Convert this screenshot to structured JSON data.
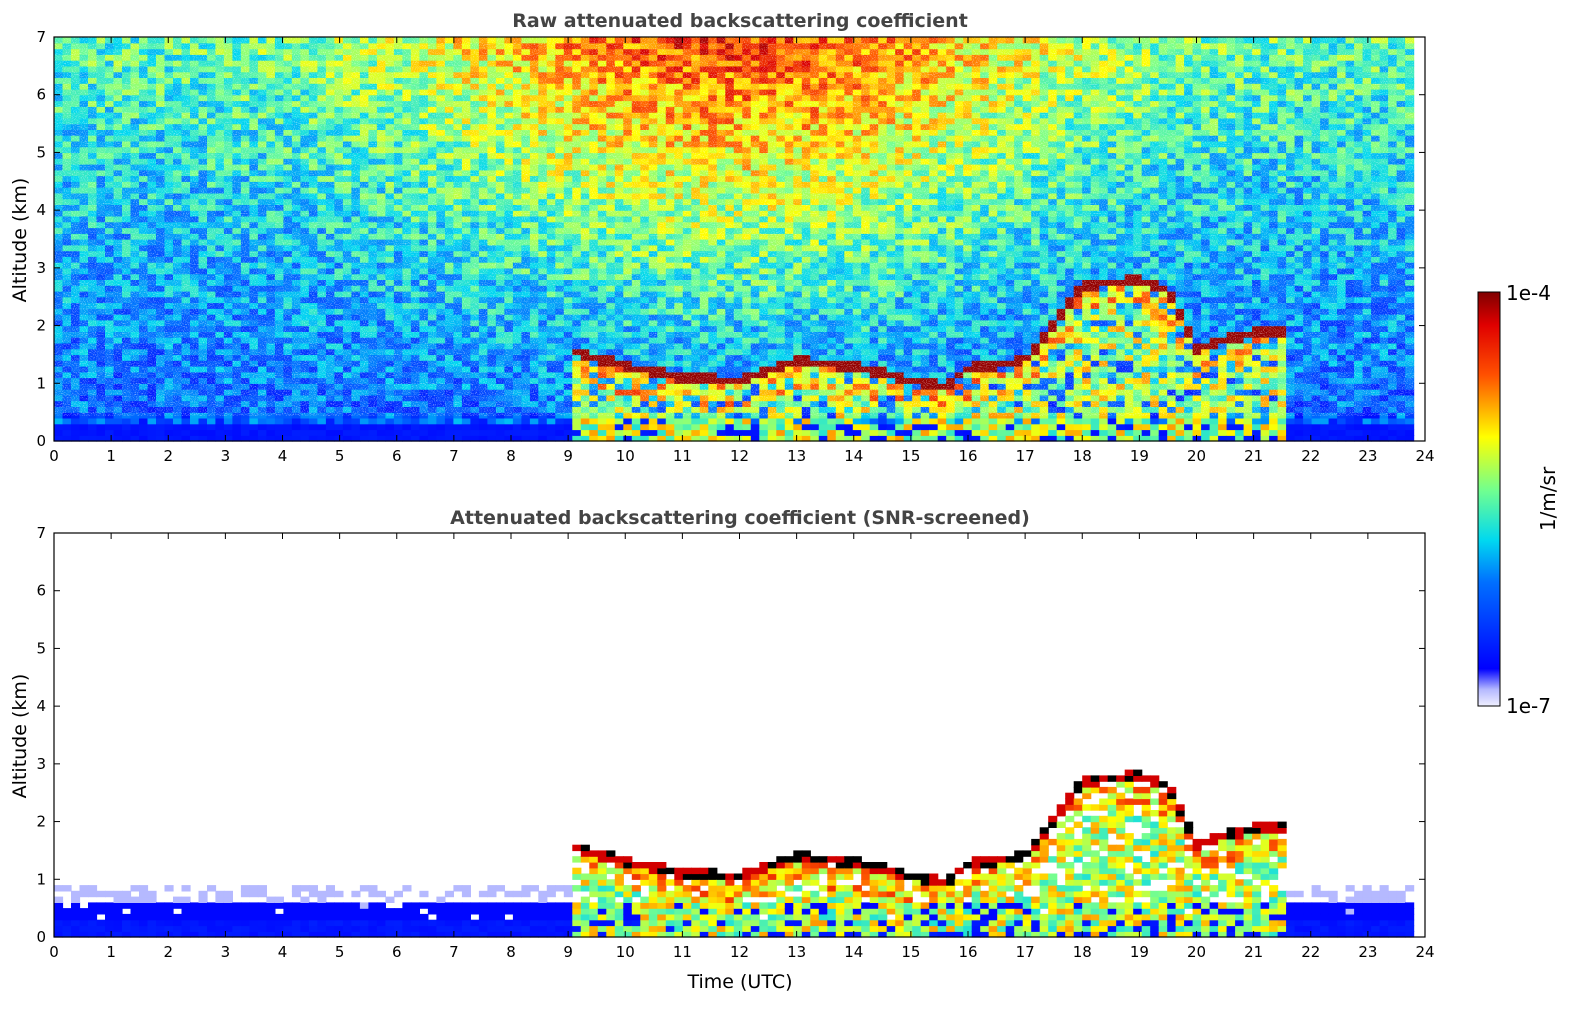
{
  "chart_data": [
    {
      "type": "heatmap",
      "title": "Raw attenuated backscattering coefficient",
      "xlabel": "",
      "ylabel": "Altitude (km)",
      "xlim": [
        0,
        24
      ],
      "ylim": [
        0,
        7
      ],
      "x_ticks": [
        "0",
        "1",
        "2",
        "3",
        "4",
        "5",
        "6",
        "7",
        "8",
        "9",
        "10",
        "11",
        "12",
        "13",
        "14",
        "15",
        "16",
        "17",
        "18",
        "19",
        "20",
        "21",
        "22",
        "23",
        "24"
      ],
      "y_ticks": [
        "0",
        "1",
        "2",
        "3",
        "4",
        "5",
        "6",
        "7"
      ],
      "data_end_time": 23.8,
      "cloud_layer": {
        "time": [
          9.0,
          10.0,
          11.0,
          12.0,
          13.0,
          14.0,
          15.0,
          15.6,
          16.0,
          17.0,
          17.5,
          18.0,
          19.0,
          19.5,
          20.0,
          21.0,
          21.5
        ],
        "altitude_km": [
          1.6,
          1.3,
          1.1,
          1.05,
          1.4,
          1.3,
          1.05,
          0.95,
          1.25,
          1.4,
          2.0,
          2.7,
          2.8,
          2.6,
          1.6,
          1.9,
          1.9
        ]
      },
      "grid": false
    },
    {
      "type": "heatmap",
      "title": "Attenuated backscattering coefficient (SNR-screened)",
      "xlabel": "Time (UTC)",
      "ylabel": "Altitude (km)",
      "xlim": [
        0,
        24
      ],
      "ylim": [
        0,
        7
      ],
      "x_ticks": [
        "0",
        "1",
        "2",
        "3",
        "4",
        "5",
        "6",
        "7",
        "8",
        "9",
        "10",
        "11",
        "12",
        "13",
        "14",
        "15",
        "16",
        "17",
        "18",
        "19",
        "20",
        "21",
        "22",
        "23",
        "24"
      ],
      "y_ticks": [
        "0",
        "1",
        "2",
        "3",
        "4",
        "5",
        "6",
        "7"
      ],
      "data_end_time": 23.8,
      "grid": false
    }
  ],
  "colorbar": {
    "label": "1/m/sr",
    "max_label": "1e-4",
    "min_label": "1e-7",
    "scale": "log",
    "colormap": "jet"
  }
}
